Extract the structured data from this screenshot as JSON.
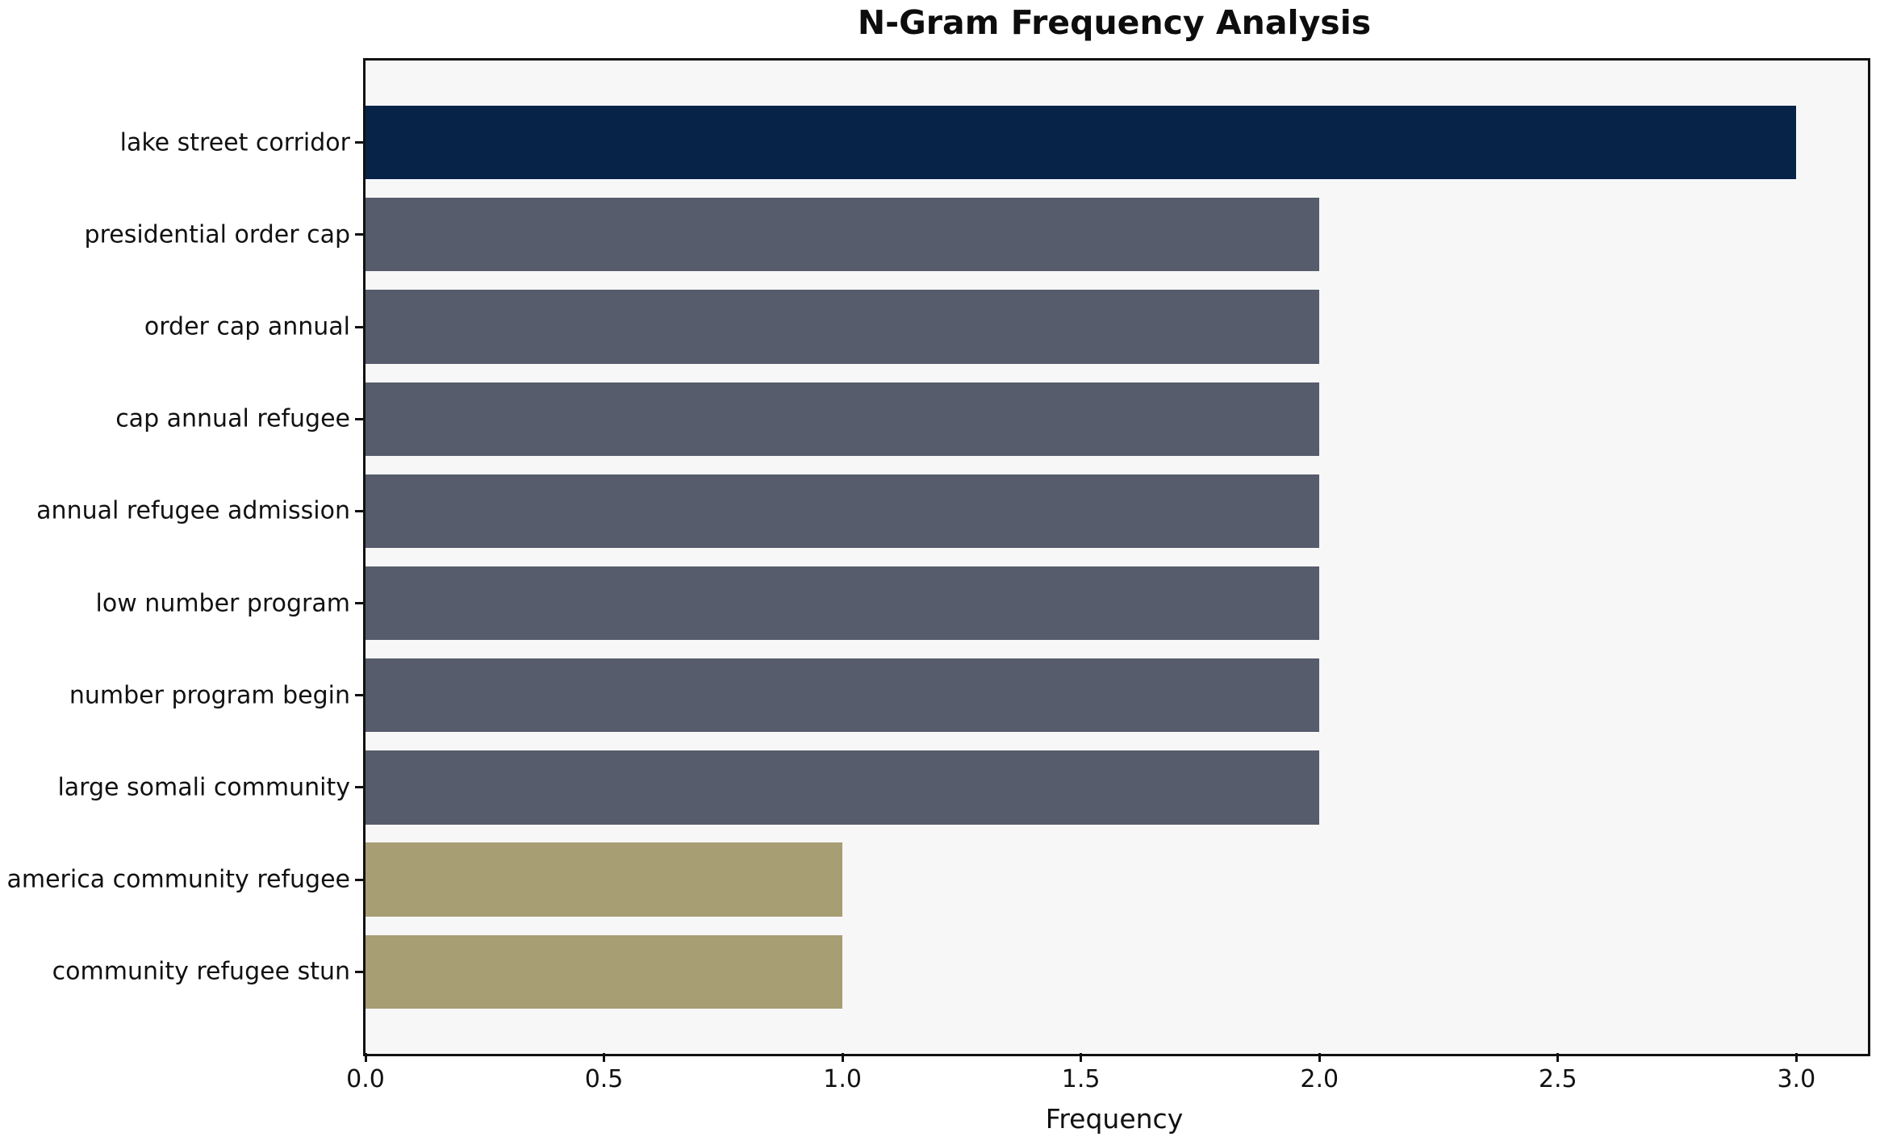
{
  "title": "N-Gram Frequency Analysis",
  "chart_data": {
    "type": "bar",
    "orientation": "horizontal",
    "title": "N-Gram Frequency Analysis",
    "xlabel": "Frequency",
    "ylabel": "",
    "categories": [
      "lake street corridor",
      "presidential order cap",
      "order cap annual",
      "cap annual refugee",
      "annual refugee admission",
      "low number program",
      "number program begin",
      "large somali community",
      "america community refugee",
      "community refugee stun"
    ],
    "values": [
      3,
      2,
      2,
      2,
      2,
      2,
      2,
      2,
      1,
      1
    ],
    "bar_colors": [
      "#082348",
      "#565c6b",
      "#565c6b",
      "#565c6b",
      "#565c6b",
      "#565c6b",
      "#565c6b",
      "#565c6b",
      "#a89e73",
      "#a89e73"
    ],
    "xlim": [
      0,
      3.15
    ],
    "xticks": [
      0.0,
      0.5,
      1.0,
      1.5,
      2.0,
      2.5,
      3.0
    ],
    "xtick_labels": [
      "0.0",
      "0.5",
      "1.0",
      "1.5",
      "2.0",
      "2.5",
      "3.0"
    ],
    "grid": false,
    "legend": null,
    "colors": {
      "plot_background": "#f7f7f8",
      "figure_background": "#ffffff",
      "spine": "#111111",
      "text": "#111111"
    }
  }
}
